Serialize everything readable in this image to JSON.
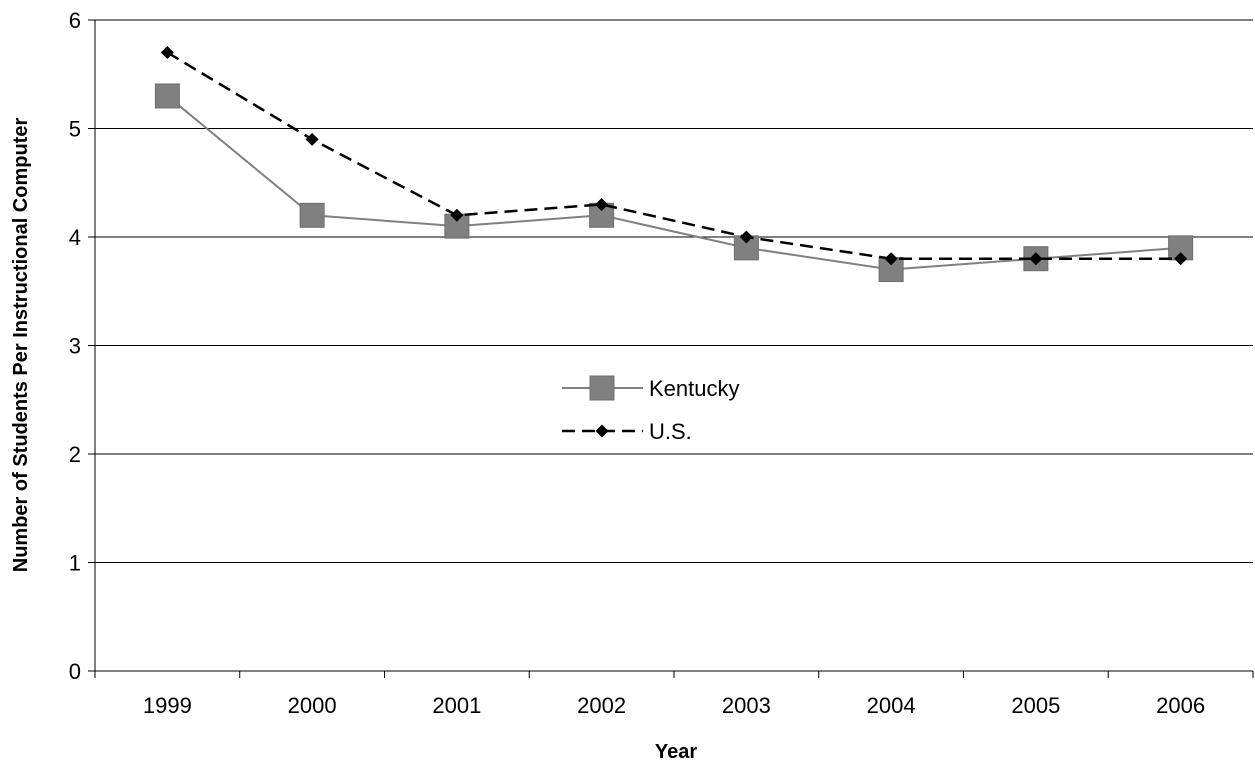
{
  "chart_data": {
    "type": "line",
    "xlabel": "Year",
    "ylabel": "Number of Students Per Instructional Computer",
    "categories": [
      "1999",
      "2000",
      "2001",
      "2002",
      "2003",
      "2004",
      "2005",
      "2006"
    ],
    "ylim": [
      0,
      6
    ],
    "yticks": [
      "0",
      "1",
      "2",
      "3",
      "4",
      "5",
      "6"
    ],
    "grid": true,
    "legend_position": "center",
    "series": [
      {
        "name": "Kentucky",
        "values": [
          5.3,
          4.2,
          4.1,
          4.2,
          3.9,
          3.7,
          3.8,
          3.9
        ],
        "color": "#808080",
        "line_style": "solid",
        "marker": "square"
      },
      {
        "name": "U.S.",
        "values": [
          5.7,
          4.9,
          4.2,
          4.3,
          4.0,
          3.8,
          3.8,
          3.8
        ],
        "color": "#000000",
        "line_style": "dashed",
        "marker": "diamond"
      }
    ]
  }
}
